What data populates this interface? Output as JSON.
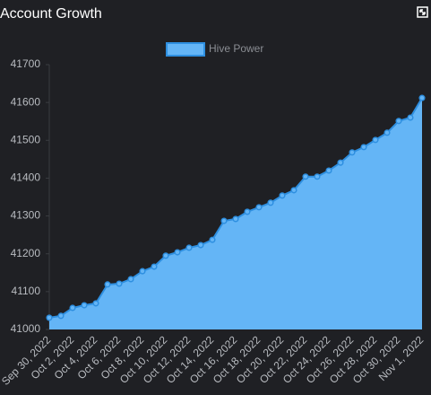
{
  "chart_data": {
    "type": "area",
    "title": "Account Growth",
    "categories": [
      "Sep 30, 2022",
      null,
      "Oct 2, 2022",
      null,
      "Oct 4, 2022",
      null,
      "Oct 6, 2022",
      null,
      "Oct 8, 2022",
      null,
      "Oct 10, 2022",
      null,
      "Oct 12, 2022",
      null,
      "Oct 14, 2022",
      null,
      "Oct 16, 2022",
      null,
      "Oct 18, 2022",
      null,
      "Oct 20, 2022",
      null,
      "Oct 22, 2022",
      null,
      "Oct 24, 2022",
      null,
      "Oct 26, 2022",
      null,
      "Oct 28, 2022",
      null,
      "Oct 30, 2022",
      null,
      "Nov 1, 2022"
    ],
    "series": [
      {
        "name": "Hive Power",
        "color": "#64b5f6",
        "line_color": "#2e8fe0",
        "values": [
          41031,
          41036,
          41057,
          41064,
          41069,
          41119,
          41121,
          41133,
          41154,
          41166,
          41195,
          41204,
          41216,
          41223,
          41237,
          41287,
          41292,
          41311,
          41323,
          41335,
          41354,
          41368,
          41404,
          41404,
          41420,
          41441,
          41468,
          41482,
          41501,
          41520,
          41551,
          41560,
          41612
        ]
      }
    ],
    "ylim": [
      41000,
      41700
    ],
    "yticks": [
      41000,
      41100,
      41200,
      41300,
      41400,
      41500,
      41600,
      41700
    ],
    "grid": false,
    "legend": "top"
  }
}
